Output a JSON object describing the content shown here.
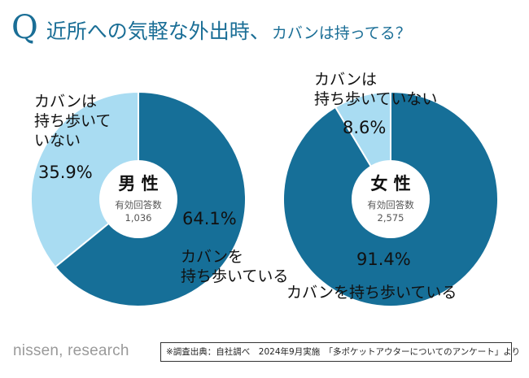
{
  "title": {
    "q_mark": "Q",
    "main": "近所への気軽な外出時、",
    "sub": "カバンは持ってる？"
  },
  "colors": {
    "title": "#1a6e96",
    "carry": "#166f98",
    "not_carry": "#a9dcf2",
    "center": "#ffffff"
  },
  "chart_data": [
    {
      "type": "pie",
      "center_label": "男 性",
      "center_sub": "有効回答数",
      "center_count": "1,036",
      "slices": [
        {
          "label": "カバンを\n持ち歩いている",
          "value": 64.1,
          "value_label": "64.1%"
        },
        {
          "label": "カバンは\n持ち歩いて\nいない",
          "value": 35.9,
          "value_label": "35.9%"
        }
      ]
    },
    {
      "type": "pie",
      "center_label": "女 性",
      "center_sub": "有効回答数",
      "center_count": "2,575",
      "slices": [
        {
          "label": "カバンを持ち歩いている",
          "value": 91.4,
          "value_label": "91.4%"
        },
        {
          "label": "カバンは\n持ち歩いていない",
          "value": 8.6,
          "value_label": "8.6%"
        }
      ]
    }
  ],
  "footer": {
    "brand": "nissen, research",
    "note": "※調査出典：自社調べ　2024年9月実施　「多ポケットアウターについてのアンケート」より"
  }
}
